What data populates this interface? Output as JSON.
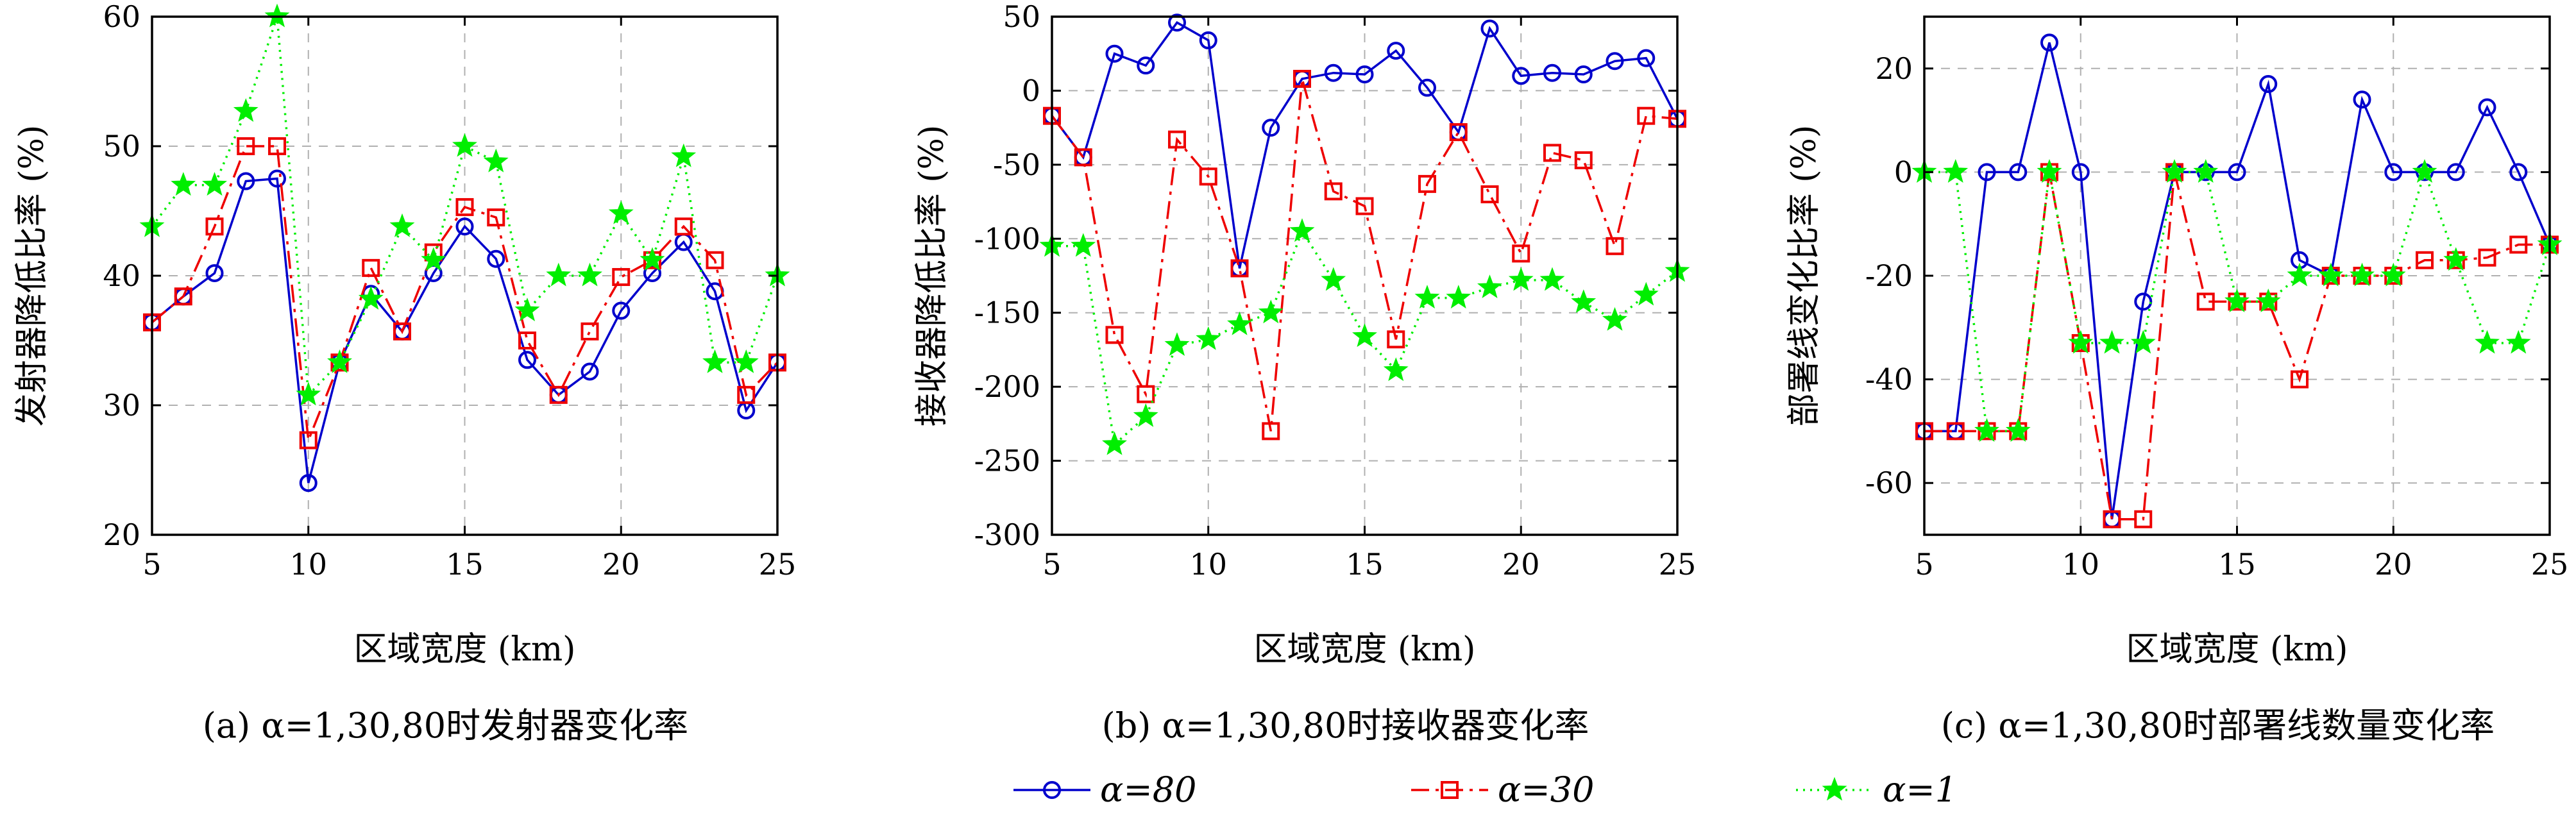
{
  "chart_data": [
    {
      "type": "line",
      "caption": "(a) α=1,30,80时发射器变化率",
      "xlabel": "区域宽度 (km)",
      "ylabel": "发射器降低比率 (%)",
      "xlim": [
        5,
        25
      ],
      "ylim": [
        20,
        60
      ],
      "xticks": [
        "5",
        "10",
        "15",
        "20",
        "25"
      ],
      "yticks": [
        "20",
        "30",
        "40",
        "50",
        "60"
      ],
      "grid": true,
      "x": [
        5,
        6,
        7,
        8,
        9,
        10,
        11,
        12,
        13,
        14,
        15,
        16,
        17,
        18,
        19,
        20,
        21,
        22,
        23,
        24,
        25
      ],
      "series": [
        {
          "name": "α=80",
          "values": [
            36.4,
            38.4,
            40.2,
            47.3,
            47.5,
            24.0,
            33.3,
            38.6,
            35.7,
            40.2,
            43.8,
            41.3,
            33.5,
            30.8,
            32.6,
            37.3,
            40.2,
            42.6,
            38.8,
            29.6,
            33.3
          ]
        },
        {
          "name": "α=30",
          "values": [
            36.4,
            38.4,
            43.8,
            50.0,
            50.0,
            27.3,
            33.3,
            40.6,
            35.7,
            41.8,
            45.3,
            44.5,
            35.0,
            30.8,
            35.7,
            39.9,
            41.2,
            43.8,
            41.2,
            30.8,
            33.3
          ]
        },
        {
          "name": "α=1",
          "values": [
            43.8,
            47.0,
            47.0,
            52.7,
            60.0,
            30.8,
            33.3,
            38.2,
            43.8,
            41.2,
            50.0,
            48.8,
            37.3,
            40.0,
            40.0,
            44.8,
            41.2,
            49.2,
            33.3,
            33.3,
            40.0
          ]
        }
      ]
    },
    {
      "type": "line",
      "caption": "(b) α=1,30,80时接收器变化率",
      "xlabel": "区域宽度 (km)",
      "ylabel": "接收器降低比率 (%)",
      "xlim": [
        5,
        25
      ],
      "ylim": [
        -300,
        50
      ],
      "xticks": [
        "5",
        "10",
        "15",
        "20",
        "25"
      ],
      "yticks": [
        "-300",
        "-250",
        "-200",
        "-150",
        "-100",
        "-50",
        "0",
        "50"
      ],
      "grid": true,
      "x": [
        5,
        6,
        7,
        8,
        9,
        10,
        11,
        12,
        13,
        14,
        15,
        16,
        17,
        18,
        19,
        20,
        21,
        22,
        23,
        24,
        25
      ],
      "series": [
        {
          "name": "α=80",
          "values": [
            -17,
            -45,
            25,
            17,
            46,
            34,
            -120,
            -25,
            8,
            12,
            11,
            27,
            2,
            -28,
            42,
            10,
            12,
            11,
            20,
            22,
            -19
          ]
        },
        {
          "name": "α=30",
          "values": [
            -17,
            -45,
            -165,
            -205,
            -33,
            -58,
            -120,
            -230,
            8,
            -68,
            -78,
            -168,
            -63,
            -28,
            -70,
            -110,
            -42,
            -47,
            -105,
            -17,
            -19
          ]
        },
        {
          "name": "α=1",
          "values": [
            -105,
            -105,
            -239,
            -220,
            -172,
            -168,
            -158,
            -150,
            -95,
            -128,
            -166,
            -189,
            -140,
            -140,
            -133,
            -128,
            -128,
            -143,
            -155,
            -138,
            -122
          ]
        }
      ]
    },
    {
      "type": "line",
      "caption": "(c) α=1,30,80时部署线数量变化率",
      "xlabel": "区域宽度 (km)",
      "ylabel": "部署线变化比率 (%)",
      "xlim": [
        5,
        25
      ],
      "ylim": [
        -70,
        30
      ],
      "xticks": [
        "5",
        "10",
        "15",
        "20",
        "25"
      ],
      "yticks": [
        "-60",
        "-40",
        "-20",
        "0",
        "20"
      ],
      "grid": true,
      "x": [
        5,
        6,
        7,
        8,
        9,
        10,
        11,
        12,
        13,
        14,
        15,
        16,
        17,
        18,
        19,
        20,
        21,
        22,
        23,
        24,
        25
      ],
      "series": [
        {
          "name": "α=80",
          "values": [
            -50,
            -50,
            0,
            0,
            25,
            0,
            -67,
            -25,
            0,
            0,
            0,
            17,
            -17,
            -20,
            14,
            0,
            0,
            0,
            12.5,
            0,
            -14
          ]
        },
        {
          "name": "α=30",
          "values": [
            -50,
            -50,
            -50,
            -50,
            0,
            -33,
            -67,
            -67,
            0,
            -25,
            -25,
            -25,
            -40,
            -20,
            -20,
            -20,
            -17,
            -17,
            -16.5,
            -14,
            -14
          ]
        },
        {
          "name": "α=1",
          "values": [
            0,
            0,
            -50,
            -50,
            0,
            -33,
            -33,
            -33,
            0,
            0,
            -25,
            -25,
            -20,
            -20,
            -20,
            -20,
            0,
            -17,
            -33,
            -33,
            -14
          ]
        }
      ]
    }
  ],
  "legend": {
    "placement": "bottom-center",
    "items": [
      {
        "label": "α=80",
        "color": "#0000cc",
        "marker": "circle",
        "linestyle": "solid"
      },
      {
        "label": "α=30",
        "color": "#ee0000",
        "marker": "square",
        "linestyle": "dashdot"
      },
      {
        "label": "α=1",
        "color": "#00ee00",
        "marker": "star",
        "linestyle": "dotted"
      }
    ]
  }
}
